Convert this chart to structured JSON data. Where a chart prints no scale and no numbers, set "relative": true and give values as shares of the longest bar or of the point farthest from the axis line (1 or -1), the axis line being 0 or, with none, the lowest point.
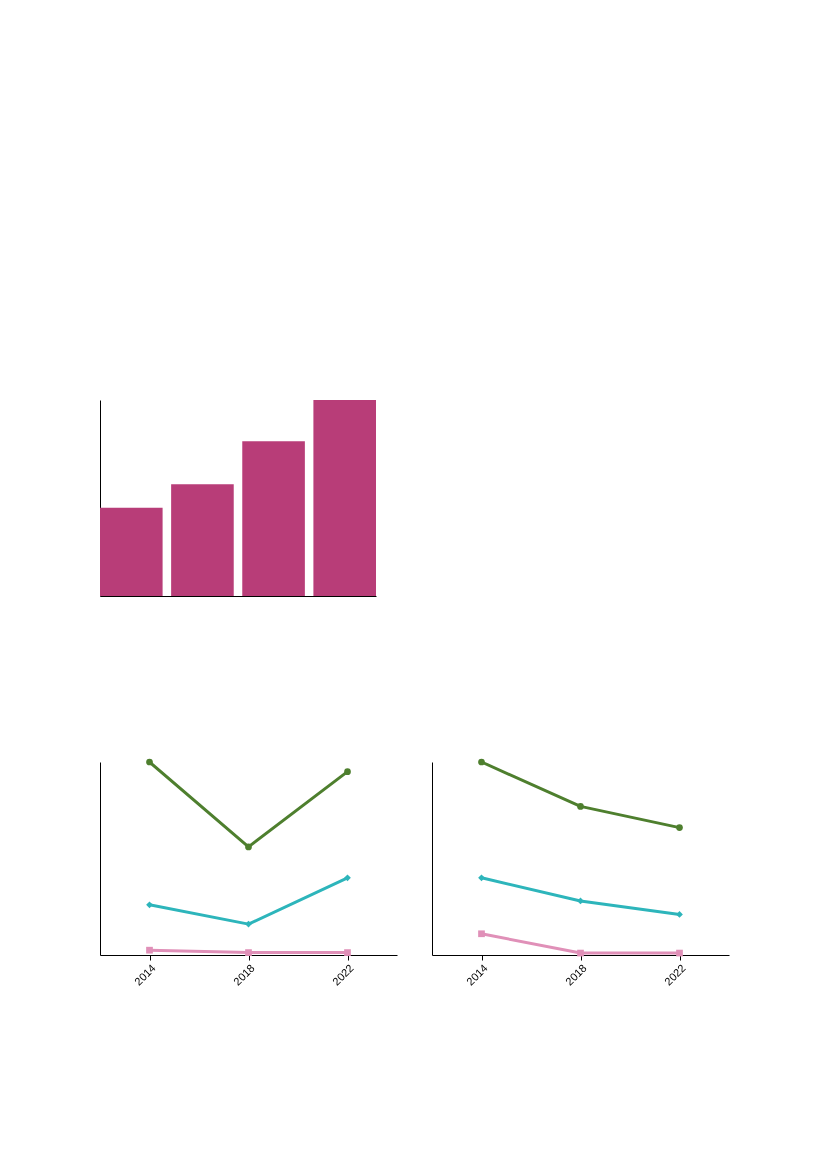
{
  "chart_data": [
    {
      "type": "bar",
      "relative": true,
      "categories": [
        null,
        null,
        null,
        null
      ],
      "values": [
        0.45,
        0.57,
        0.79,
        1
      ],
      "color": "#b83d78",
      "grid": false,
      "legend": false
    },
    {
      "type": "line",
      "relative": true,
      "categories": [
        "2014",
        "2018",
        "2022"
      ],
      "marker": "circle",
      "line_style": "solid",
      "grid": false,
      "legend": false,
      "series": [
        {
          "color": "#e090b8",
          "marker": "square",
          "values": [
            0.025,
            0.0125,
            0.0125
          ]
        },
        {
          "color": "#2db5bb",
          "marker": "diamond",
          "values": [
            0.26,
            0.16,
            0.4
          ]
        },
        {
          "color": "#4e7f2e",
          "marker": "circle",
          "values": [
            1,
            0.56,
            0.95
          ]
        }
      ]
    },
    {
      "type": "line",
      "relative": true,
      "categories": [
        "2014",
        "2018",
        "2022"
      ],
      "marker": "circle",
      "line_style": "solid",
      "grid": false,
      "legend": false,
      "series": [
        {
          "color": "#e090b8",
          "marker": "square",
          "values": [
            0.11,
            0.01,
            0.01
          ]
        },
        {
          "color": "#2db5bb",
          "marker": "diamond",
          "values": [
            0.4,
            0.28,
            0.21
          ]
        },
        {
          "color": "#4e7f2e",
          "marker": "circle",
          "values": [
            1,
            0.77,
            0.66
          ]
        }
      ]
    }
  ]
}
